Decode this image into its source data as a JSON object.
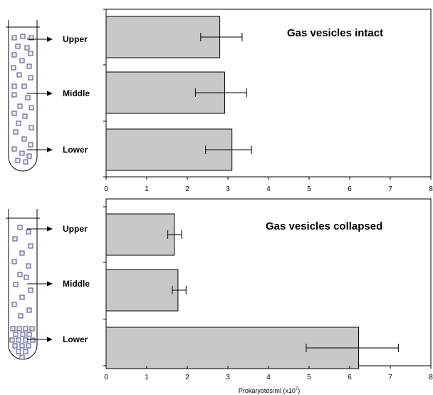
{
  "colors": {
    "bar_fill": "#c8c8c8",
    "bar_stroke": "#000000",
    "square_stroke": "#4a4a8a",
    "square_fill": "#e8e8f4"
  },
  "chart_data": [
    {
      "type": "bar",
      "orientation": "horizontal",
      "title": "Gas vesicles intact",
      "categories": [
        "Upper",
        "Middle",
        "Lower"
      ],
      "values": [
        2.8,
        2.92,
        3.1
      ],
      "error_low": [
        2.33,
        2.2,
        2.45
      ],
      "error_high": [
        3.35,
        3.46,
        3.58
      ],
      "xlim": [
        0,
        8
      ],
      "xticks": [
        "0",
        "1",
        "2",
        "3",
        "4",
        "5",
        "6",
        "7",
        "8"
      ],
      "xlabel": "",
      "grid": false
    },
    {
      "type": "bar",
      "orientation": "horizontal",
      "title": "Gas vesicles collapsed",
      "categories": [
        "Upper",
        "Middle",
        "Lower"
      ],
      "values": [
        1.68,
        1.77,
        6.22
      ],
      "error_low": [
        1.52,
        1.63,
        4.93
      ],
      "error_high": [
        1.86,
        1.97,
        7.2
      ],
      "xlim": [
        0,
        8
      ],
      "xticks": [
        "0",
        "1",
        "2",
        "3",
        "4",
        "5",
        "6",
        "7",
        "8"
      ],
      "xlabel": "Prokaryotes/ml (x10",
      "xlabel_superscript": "7",
      "xlabel_suffix": ")",
      "grid": false
    }
  ]
}
